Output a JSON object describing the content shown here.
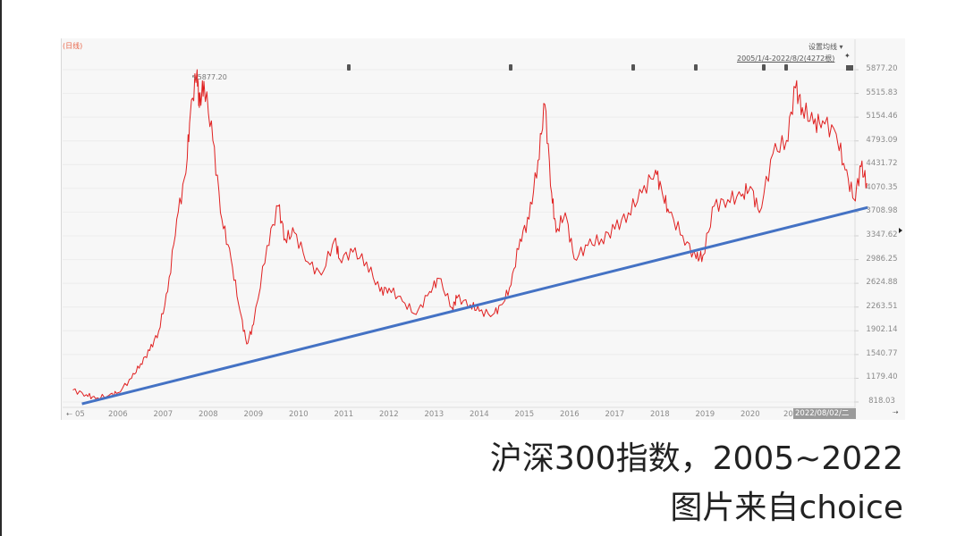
{
  "chart_data": {
    "type": "line",
    "title": "沪深300指数，2005~2022",
    "source": "图片来自choice",
    "period_label": "(日线)",
    "settings_label": "设置均线",
    "date_range_label": "2005/1/4-2022/8/2(4272根)",
    "peak_annotation": "5877.20",
    "cursor_date_label": "2022/08/02/二",
    "xlabel": "",
    "ylabel": "",
    "x_ticks": [
      "05",
      "2006",
      "2007",
      "2008",
      "2009",
      "2010",
      "2011",
      "2012",
      "2013",
      "2014",
      "2015",
      "2016",
      "2017",
      "2018",
      "2019",
      "2020",
      "20"
    ],
    "y_ticks": [
      "5877.20",
      "5515.83",
      "5154.46",
      "4793.09",
      "4431.72",
      "4070.35",
      "3708.98",
      "3347.62",
      "2986.25",
      "2624.88",
      "2263.51",
      "1902.14",
      "1540.77",
      "1179.40",
      "818.03"
    ],
    "ylim": [
      818.03,
      5877.2
    ],
    "xlim": [
      2005.0,
      2022.6
    ],
    "grid": true,
    "series": [
      {
        "name": "沪深300",
        "color": "#e02020",
        "x": [
          2005.0,
          2005.3,
          2005.5,
          2005.8,
          2006.0,
          2006.3,
          2006.5,
          2006.7,
          2006.9,
          2007.1,
          2007.3,
          2007.5,
          2007.6,
          2007.75,
          2007.8,
          2007.9,
          2008.1,
          2008.3,
          2008.5,
          2008.7,
          2008.85,
          2009.0,
          2009.3,
          2009.55,
          2009.7,
          2009.9,
          2010.2,
          2010.5,
          2010.8,
          2010.9,
          2011.2,
          2011.5,
          2011.8,
          2012.0,
          2012.3,
          2012.6,
          2012.9,
          2013.1,
          2013.4,
          2013.5,
          2013.8,
          2014.0,
          2014.3,
          2014.5,
          2014.7,
          2014.9,
          2015.1,
          2015.3,
          2015.45,
          2015.6,
          2015.7,
          2015.9,
          2016.1,
          2016.4,
          2016.7,
          2017.0,
          2017.3,
          2017.6,
          2017.9,
          2018.05,
          2018.2,
          2018.5,
          2018.8,
          2018.95,
          2019.2,
          2019.5,
          2019.8,
          2020.0,
          2020.2,
          2020.5,
          2020.8,
          2021.0,
          2021.15,
          2021.4,
          2021.6,
          2021.9,
          2022.1,
          2022.3,
          2022.45,
          2022.58
        ],
        "values": [
          1000,
          930,
          870,
          920,
          960,
          1180,
          1400,
          1600,
          1900,
          2500,
          3600,
          4300,
          5200,
          5877,
          5300,
          5700,
          4800,
          3600,
          3000,
          2200,
          1700,
          2000,
          3200,
          3800,
          3300,
          3400,
          2950,
          2750,
          3300,
          3000,
          3100,
          2950,
          2500,
          2550,
          2350,
          2150,
          2500,
          2700,
          2250,
          2400,
          2300,
          2200,
          2150,
          2300,
          2600,
          3300,
          3600,
          4500,
          5350,
          4000,
          3400,
          3700,
          3000,
          3200,
          3300,
          3450,
          3700,
          4000,
          4350,
          4000,
          3700,
          3350,
          3000,
          3050,
          3800,
          3900,
          3950,
          4100,
          3700,
          4600,
          4800,
          5600,
          5300,
          5050,
          5100,
          4900,
          4350,
          3900,
          4400,
          4150
        ]
      },
      {
        "name": "trend line",
        "color": "#4472c4",
        "x": [
          2005.2,
          2022.6
        ],
        "values": [
          790,
          3780
        ]
      }
    ],
    "event_markers_x": [
      2011.1,
      2014.7,
      2017.4,
      2018.8,
      2020.3,
      2020.8
    ]
  },
  "caption": {
    "line1": "沪深300指数，2005~2022",
    "line2": "图片来自choice"
  },
  "colors": {
    "price": "#e02020",
    "trend": "#4472c4",
    "background": "#f7f7f7"
  }
}
